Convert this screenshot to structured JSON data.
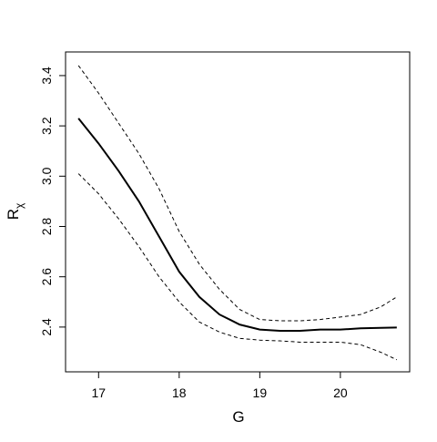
{
  "chart_data": {
    "type": "line",
    "xlabel": "G",
    "ylabel": "R",
    "ylabel_subscript": "χ",
    "x": [
      16.75,
      17,
      17.25,
      17.5,
      17.75,
      18,
      18.25,
      18.5,
      18.75,
      19,
      19.25,
      19.5,
      19.75,
      20,
      20.25,
      20.5,
      20.7
    ],
    "series": [
      {
        "color": "#000000",
        "dashed": false,
        "width": 2,
        "values": [
          3.23,
          3.13,
          3.02,
          2.9,
          2.76,
          2.62,
          2.52,
          2.45,
          2.41,
          2.39,
          2.385,
          2.385,
          2.39,
          2.39,
          2.395,
          2.397,
          2.398
        ]
      },
      {
        "color": "#000000",
        "dashed": true,
        "width": 1,
        "values": [
          3.44,
          3.33,
          3.21,
          3.09,
          2.95,
          2.78,
          2.65,
          2.55,
          2.47,
          2.43,
          2.425,
          2.425,
          2.43,
          2.44,
          2.45,
          2.48,
          2.52
        ]
      },
      {
        "color": "#000000",
        "dashed": true,
        "width": 1,
        "values": [
          3.01,
          2.93,
          2.83,
          2.72,
          2.6,
          2.5,
          2.42,
          2.38,
          2.355,
          2.348,
          2.345,
          2.34,
          2.34,
          2.34,
          2.33,
          2.3,
          2.27
        ]
      }
    ],
    "xlim": [
      16.59,
      20.86
    ],
    "xticks": [
      17,
      18,
      19,
      20
    ],
    "ylim": [
      2.222,
      3.494
    ],
    "yticks": [
      2.4,
      2.6,
      2.8,
      {
        "value": 3,
        "label": "3.0"
      },
      3.2,
      3.4
    ]
  }
}
